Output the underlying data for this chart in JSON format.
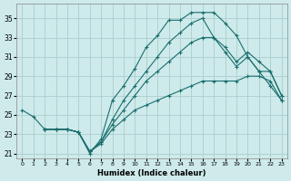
{
  "title": "",
  "xlabel": "Humidex (Indice chaleur)",
  "ylabel": "",
  "bg_color": "#ceeaea",
  "grid_color": "#aacece",
  "line_color": "#1a6e6e",
  "xlim": [
    -0.5,
    23.5
  ],
  "ylim": [
    20.5,
    36.5
  ],
  "xticks": [
    0,
    1,
    2,
    3,
    4,
    5,
    6,
    7,
    8,
    9,
    10,
    11,
    12,
    13,
    14,
    15,
    16,
    17,
    18,
    19,
    20,
    21,
    22,
    23
  ],
  "yticks": [
    21,
    23,
    25,
    27,
    29,
    31,
    33,
    35
  ],
  "line1_x": [
    0,
    1,
    2,
    3,
    4,
    5,
    6,
    7,
    8,
    9,
    10,
    11,
    12,
    13,
    14,
    15,
    16,
    17,
    18,
    19,
    20,
    21,
    22,
    23
  ],
  "line1_y": [
    25.5,
    24.8,
    23.5,
    23.5,
    23.5,
    23.2,
    21.0,
    22.5,
    26.5,
    28.0,
    29.8,
    32.0,
    33.2,
    34.8,
    34.8,
    35.6,
    35.6,
    35.6,
    34.5,
    33.2,
    31.0,
    29.5,
    28.0,
    26.5
  ],
  "line2_x": [
    2,
    3,
    4,
    5,
    6,
    7,
    8,
    9,
    10,
    11,
    12,
    13,
    14,
    15,
    16,
    17,
    18,
    19,
    20,
    21,
    22,
    23
  ],
  "line2_y": [
    23.5,
    23.5,
    23.5,
    23.2,
    21.2,
    22.2,
    24.5,
    26.5,
    28.0,
    29.5,
    31.0,
    32.5,
    33.5,
    34.5,
    35.0,
    33.0,
    31.5,
    30.0,
    31.0,
    29.5,
    29.5,
    27.0
  ],
  "line3_x": [
    2,
    3,
    4,
    5,
    6,
    7,
    8,
    9,
    10,
    11,
    12,
    13,
    14,
    15,
    16,
    17,
    18,
    19,
    20,
    21,
    22,
    23
  ],
  "line3_y": [
    23.5,
    23.5,
    23.5,
    23.2,
    21.2,
    22.2,
    24.0,
    25.5,
    27.0,
    28.5,
    29.5,
    30.5,
    31.5,
    32.5,
    33.0,
    33.0,
    32.0,
    30.5,
    31.5,
    30.5,
    29.5,
    27.0
  ],
  "line4_x": [
    2,
    3,
    4,
    5,
    6,
    7,
    8,
    9,
    10,
    11,
    12,
    13,
    14,
    15,
    16,
    17,
    18,
    19,
    20,
    21,
    22,
    23
  ],
  "line4_y": [
    23.5,
    23.5,
    23.5,
    23.2,
    21.2,
    22.0,
    23.5,
    24.5,
    25.5,
    26.0,
    26.5,
    27.0,
    27.5,
    28.0,
    28.5,
    28.5,
    28.5,
    28.5,
    29.0,
    29.0,
    28.5,
    26.5
  ]
}
